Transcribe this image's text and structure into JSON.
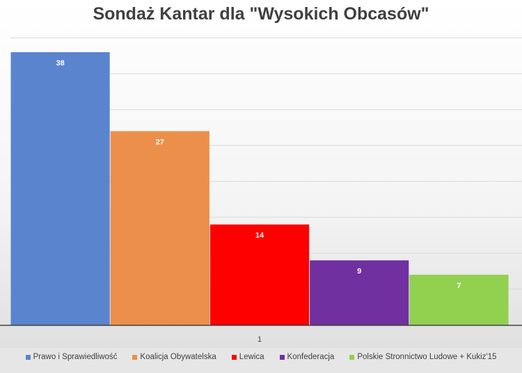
{
  "colors": {
    "background": "#ffffff",
    "gridline": "#d9d9d9",
    "axis": "#404040",
    "data_label": "#ffffff"
  },
  "chart_data": {
    "type": "bar",
    "title": "Sondaż Kantar dla \"Wysokich Obcasów\"",
    "xlabel": "",
    "ylabel": "",
    "categories": [
      "1"
    ],
    "ylim": [
      0,
      38
    ],
    "grid": true,
    "legend_position": "bottom",
    "show_data_labels": true,
    "series": [
      {
        "name": "Prawo i Sprawiedliwość",
        "values": [
          38
        ],
        "color": "#5b84cf"
      },
      {
        "name": "Koalicja Obywatelska",
        "values": [
          27
        ],
        "color": "#ec8f4b"
      },
      {
        "name": "Lewica",
        "values": [
          14
        ],
        "color": "#ff0000"
      },
      {
        "name": "Konfederacja",
        "values": [
          9
        ],
        "color": "#7030a0"
      },
      {
        "name": "Polskie Stronnictwo Ludowe + Kukiz'15",
        "values": [
          7
        ],
        "color": "#92d050"
      }
    ]
  }
}
